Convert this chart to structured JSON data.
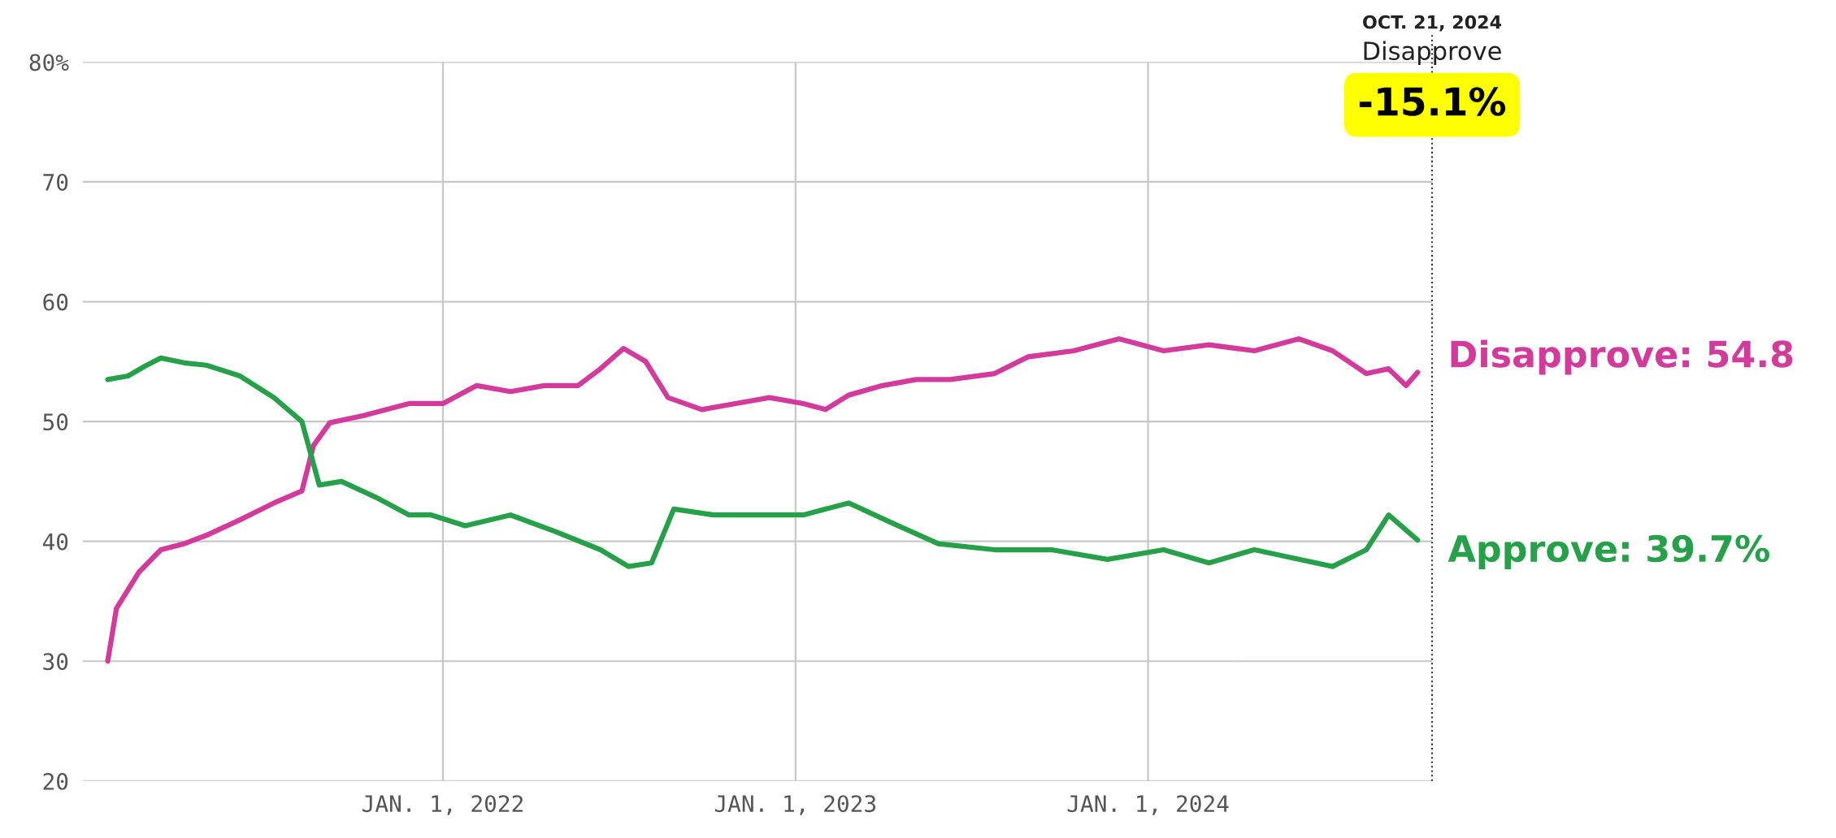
{
  "chart_data": {
    "type": "line",
    "xlim": [
      "2020-12-24",
      "2024-10-21"
    ],
    "xticks": [
      {
        "value": "2022-01-01",
        "label": "JAN. 1, 2022"
      },
      {
        "value": "2023-01-01",
        "label": "JAN. 1, 2023"
      },
      {
        "value": "2024-01-01",
        "label": "JAN. 1, 2024"
      }
    ],
    "ylim": [
      20,
      80
    ],
    "yticks": [
      20,
      30,
      40,
      50,
      60,
      70,
      {
        "value": 80,
        "label": "80%"
      }
    ],
    "grid": true,
    "series": [
      {
        "color": "#d23a9c",
        "x": [
          "2021-01-19",
          "2021-01-28",
          "2021-02-20",
          "2021-03-15",
          "2021-04-08",
          "2021-05-01",
          "2021-06-05",
          "2021-07-10",
          "2021-08-08",
          "2021-08-20",
          "2021-09-06",
          "2021-10-11",
          "2021-11-27",
          "2022-01-01",
          "2022-02-05",
          "2022-03-12",
          "2022-04-16",
          "2022-05-21",
          "2022-06-13",
          "2022-07-07",
          "2022-07-30",
          "2022-08-22",
          "2022-09-26",
          "2022-10-31",
          "2022-12-05",
          "2023-01-09",
          "2023-02-01",
          "2023-02-25",
          "2023-04-01",
          "2023-05-06",
          "2023-06-10",
          "2023-07-26",
          "2023-08-30",
          "2023-10-16",
          "2023-12-02",
          "2024-01-17",
          "2024-03-04",
          "2024-04-20",
          "2024-06-05",
          "2024-07-10",
          "2024-08-14",
          "2024-09-06",
          "2024-09-24",
          "2024-10-06"
        ],
        "values": [
          30,
          34.4,
          37.4,
          39.3,
          39.8,
          40.5,
          41.8,
          43.2,
          44.2,
          48,
          49.9,
          50.5,
          51.5,
          51.5,
          53,
          52.5,
          53,
          53,
          54.4,
          56.1,
          55,
          52,
          51,
          51.5,
          52,
          51.5,
          51,
          52.2,
          53,
          53.5,
          53.5,
          54,
          55.4,
          55.9,
          56.9,
          55.9,
          56.4,
          55.9,
          56.9,
          55.9,
          54,
          54.4,
          53,
          54.1
        ]
      },
      {
        "color": "#27a04a",
        "x": [
          "2021-01-19",
          "2021-02-09",
          "2021-02-26",
          "2021-03-15",
          "2021-04-08",
          "2021-05-01",
          "2021-06-05",
          "2021-07-10",
          "2021-08-08",
          "2021-08-26",
          "2021-09-18",
          "2021-10-23",
          "2021-11-27",
          "2021-12-20",
          "2022-01-24",
          "2022-03-12",
          "2022-04-28",
          "2022-06-13",
          "2022-07-12",
          "2022-08-05",
          "2022-08-28",
          "2022-10-08",
          "2022-11-23",
          "2023-01-09",
          "2023-02-25",
          "2023-04-12",
          "2023-05-29",
          "2023-07-26",
          "2023-09-23",
          "2023-11-20",
          "2024-01-17",
          "2024-03-04",
          "2024-04-20",
          "2024-06-05",
          "2024-07-10",
          "2024-08-14",
          "2024-09-06",
          "2024-10-06"
        ],
        "values": [
          53.5,
          53.8,
          54.6,
          55.3,
          54.9,
          54.7,
          53.8,
          52,
          50,
          44.7,
          45,
          43.7,
          42.2,
          42.2,
          41.3,
          42.2,
          40.8,
          39.3,
          37.9,
          38.2,
          42.7,
          42.2,
          42.2,
          42.2,
          43.2,
          41.5,
          39.8,
          39.3,
          39.3,
          38.5,
          39.3,
          38.2,
          39.3,
          38.5,
          37.9,
          39.3,
          42.2,
          40.1
        ]
      }
    ],
    "ref_lines": [
      {
        "axis": "x",
        "value": "2024-10-21",
        "label": "OCT. 21, 2024",
        "line_style": "dotted",
        "color": "#333333"
      }
    ],
    "annotations": [
      {
        "text": "Disapprove",
        "x": "2024-10-21",
        "y": 80
      },
      {
        "text": "-15.1%",
        "x": "2024-10-21",
        "y": 80
      },
      {
        "text": "Disapprove: 54.8",
        "x": "2024-10-21",
        "y": 54.8
      },
      {
        "text": "Approve: 39.7%",
        "x": "2024-10-21",
        "y": 39.7
      }
    ]
  }
}
